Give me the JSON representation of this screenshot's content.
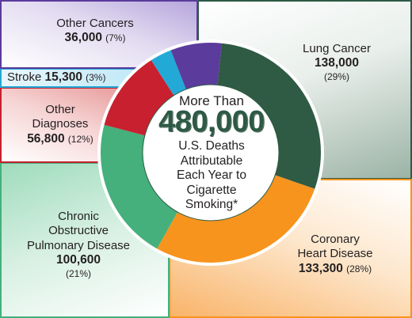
{
  "chart_data": {
    "type": "pie",
    "style": "donut",
    "center": {
      "line1": "More Than",
      "total": "480,000",
      "lines": [
        "U.S. Deaths",
        "Attributable",
        "Each Year to",
        "Cigarette",
        "Smoking*"
      ]
    },
    "slices": [
      {
        "label": "Lung Cancer",
        "value": 138000,
        "value_text": "138,000",
        "percent_text": "(29%)",
        "color": "#2f5a44"
      },
      {
        "label": "Coronary Heart Disease",
        "label_lines": [
          "Coronary",
          "Heart Disease"
        ],
        "value": 133300,
        "value_text": "133,300",
        "percent_text": "(28%)",
        "color": "#f7941d"
      },
      {
        "label": "Chronic Obstructive Pulmonary Disease",
        "label_lines": [
          "Chronic",
          "Obstructive",
          "Pulmonary Disease"
        ],
        "value": 100600,
        "value_text": "100,600",
        "percent_text": "(21%)",
        "color": "#45b07c"
      },
      {
        "label": "Other Diagnoses",
        "label_lines": [
          "Other",
          "Diagnoses"
        ],
        "value": 56800,
        "value_text": "56,800",
        "percent_text": "(12%)",
        "color": "#c8202f"
      },
      {
        "label": "Stroke",
        "value": 15300,
        "value_text": "15,300",
        "percent_text": "(3%)",
        "color": "#23a9d6"
      },
      {
        "label": "Other Cancers",
        "value": 36000,
        "value_text": "36,000",
        "percent_text": "(7%)",
        "color": "#5b3b9c"
      }
    ]
  }
}
